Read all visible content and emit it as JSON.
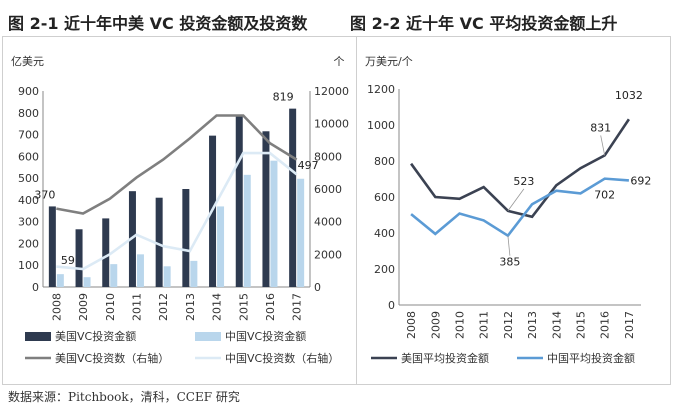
{
  "page": {
    "source_note": "数据来源：Pitchbook，清科，CCEF 研究"
  },
  "colors": {
    "us_bar": "#2e3a4f",
    "cn_bar": "#b9d6ec",
    "us_line": "#7f7f7f",
    "cn_line": "#dceaf5",
    "us_avg_line": "#3b4252",
    "cn_avg_line": "#5b9bd5"
  },
  "chart_data": [
    {
      "id": "fig1",
      "type": "bar",
      "title": "图 2-1 近十年中美 VC 投资金额及投资数",
      "ylabel_left": "亿美元",
      "ylabel_right": "个",
      "ylim_left": [
        0,
        900
      ],
      "yticks_left": [
        0,
        100,
        200,
        300,
        400,
        500,
        600,
        700,
        800,
        900
      ],
      "ylim_right": [
        0,
        12000
      ],
      "yticks_right": [
        0,
        2000,
        4000,
        6000,
        8000,
        10000,
        12000
      ],
      "categories": [
        "2008",
        "2009",
        "2010",
        "2011",
        "2012",
        "2013",
        "2014",
        "2015",
        "2016",
        "2017"
      ],
      "series": [
        {
          "name": "美国VC投资金额",
          "kind": "bar",
          "axis": "left",
          "values": [
            370,
            265,
            315,
            440,
            410,
            450,
            695,
            785,
            715,
            819
          ]
        },
        {
          "name": "中国VC投资金额",
          "kind": "bar",
          "axis": "left",
          "values": [
            59,
            45,
            105,
            150,
            95,
            120,
            370,
            515,
            580,
            497
          ]
        },
        {
          "name": "美国VC投资数（右轴）",
          "kind": "line",
          "axis": "right",
          "values": [
            4800,
            4500,
            5400,
            6700,
            7800,
            9100,
            10500,
            10500,
            8800,
            7800
          ]
        },
        {
          "name": "中国VC投资数（右轴）",
          "kind": "line",
          "axis": "right",
          "values": [
            1250,
            1100,
            2000,
            3200,
            2500,
            2200,
            5200,
            8200,
            8200,
            6900
          ]
        }
      ],
      "data_labels": [
        {
          "series": 0,
          "index": 0,
          "text": "370"
        },
        {
          "series": 1,
          "index": 0,
          "text": "59"
        },
        {
          "series": 0,
          "index": 9,
          "text": "819"
        },
        {
          "series": 1,
          "index": 9,
          "text": "497"
        }
      ]
    },
    {
      "id": "fig2",
      "type": "line",
      "title": "图 2-2 近十年 VC 平均投资金额上升",
      "ylabel": "万美元/个",
      "ylim": [
        0,
        1200
      ],
      "yticks": [
        0,
        200,
        400,
        600,
        800,
        1000,
        1200
      ],
      "categories": [
        "2008",
        "2009",
        "2010",
        "2011",
        "2012",
        "2013",
        "2014",
        "2015",
        "2016",
        "2017"
      ],
      "series": [
        {
          "name": "美国平均投资金额",
          "values": [
            785,
            600,
            590,
            655,
            523,
            490,
            665,
            760,
            831,
            1032
          ]
        },
        {
          "name": "中国平均投资金额",
          "values": [
            505,
            395,
            508,
            470,
            385,
            560,
            635,
            620,
            702,
            692
          ]
        }
      ],
      "data_labels": [
        {
          "series": 0,
          "index": 4,
          "text": "523"
        },
        {
          "series": 1,
          "index": 4,
          "text": "385"
        },
        {
          "series": 0,
          "index": 8,
          "text": "831"
        },
        {
          "series": 0,
          "index": 9,
          "text": "1032"
        },
        {
          "series": 1,
          "index": 8,
          "text": "702"
        },
        {
          "series": 1,
          "index": 9,
          "text": "692"
        }
      ]
    }
  ]
}
